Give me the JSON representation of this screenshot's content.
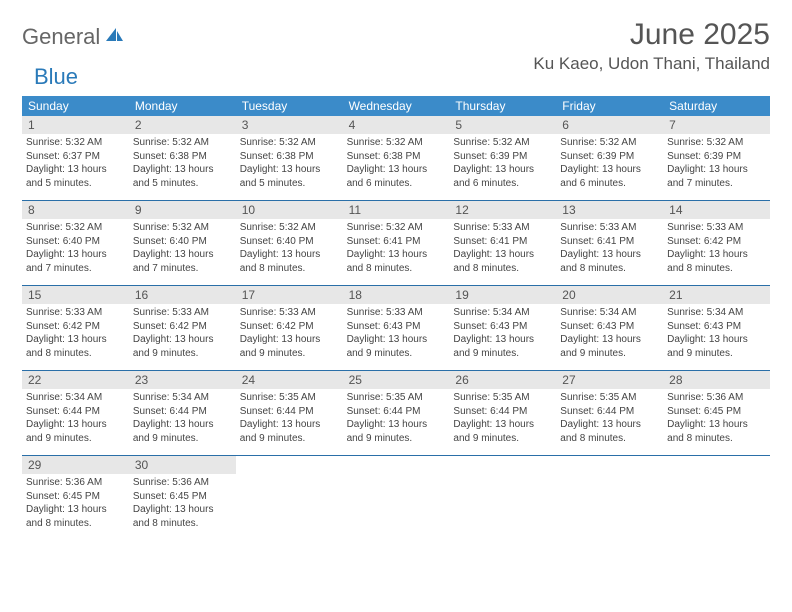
{
  "logo": {
    "text_general": "General",
    "text_blue": "Blue"
  },
  "header": {
    "month_title": "June 2025",
    "location": "Ku Kaeo, Udon Thani, Thailand"
  },
  "colors": {
    "header_bg": "#3b8bc9",
    "header_text": "#ffffff",
    "daynum_bg": "#e7e7e7",
    "daynum_text": "#555555",
    "body_text": "#444444",
    "divider": "#2a6fa8",
    "logo_gray": "#666666",
    "logo_blue": "#2a7ab9",
    "title_text": "#555555",
    "page_bg": "#ffffff"
  },
  "day_names": [
    "Sunday",
    "Monday",
    "Tuesday",
    "Wednesday",
    "Thursday",
    "Friday",
    "Saturday"
  ],
  "weeks": [
    [
      {
        "num": "1",
        "sunrise": "Sunrise: 5:32 AM",
        "sunset": "Sunset: 6:37 PM",
        "daylight1": "Daylight: 13 hours",
        "daylight2": "and 5 minutes."
      },
      {
        "num": "2",
        "sunrise": "Sunrise: 5:32 AM",
        "sunset": "Sunset: 6:38 PM",
        "daylight1": "Daylight: 13 hours",
        "daylight2": "and 5 minutes."
      },
      {
        "num": "3",
        "sunrise": "Sunrise: 5:32 AM",
        "sunset": "Sunset: 6:38 PM",
        "daylight1": "Daylight: 13 hours",
        "daylight2": "and 5 minutes."
      },
      {
        "num": "4",
        "sunrise": "Sunrise: 5:32 AM",
        "sunset": "Sunset: 6:38 PM",
        "daylight1": "Daylight: 13 hours",
        "daylight2": "and 6 minutes."
      },
      {
        "num": "5",
        "sunrise": "Sunrise: 5:32 AM",
        "sunset": "Sunset: 6:39 PM",
        "daylight1": "Daylight: 13 hours",
        "daylight2": "and 6 minutes."
      },
      {
        "num": "6",
        "sunrise": "Sunrise: 5:32 AM",
        "sunset": "Sunset: 6:39 PM",
        "daylight1": "Daylight: 13 hours",
        "daylight2": "and 6 minutes."
      },
      {
        "num": "7",
        "sunrise": "Sunrise: 5:32 AM",
        "sunset": "Sunset: 6:39 PM",
        "daylight1": "Daylight: 13 hours",
        "daylight2": "and 7 minutes."
      }
    ],
    [
      {
        "num": "8",
        "sunrise": "Sunrise: 5:32 AM",
        "sunset": "Sunset: 6:40 PM",
        "daylight1": "Daylight: 13 hours",
        "daylight2": "and 7 minutes."
      },
      {
        "num": "9",
        "sunrise": "Sunrise: 5:32 AM",
        "sunset": "Sunset: 6:40 PM",
        "daylight1": "Daylight: 13 hours",
        "daylight2": "and 7 minutes."
      },
      {
        "num": "10",
        "sunrise": "Sunrise: 5:32 AM",
        "sunset": "Sunset: 6:40 PM",
        "daylight1": "Daylight: 13 hours",
        "daylight2": "and 8 minutes."
      },
      {
        "num": "11",
        "sunrise": "Sunrise: 5:32 AM",
        "sunset": "Sunset: 6:41 PM",
        "daylight1": "Daylight: 13 hours",
        "daylight2": "and 8 minutes."
      },
      {
        "num": "12",
        "sunrise": "Sunrise: 5:33 AM",
        "sunset": "Sunset: 6:41 PM",
        "daylight1": "Daylight: 13 hours",
        "daylight2": "and 8 minutes."
      },
      {
        "num": "13",
        "sunrise": "Sunrise: 5:33 AM",
        "sunset": "Sunset: 6:41 PM",
        "daylight1": "Daylight: 13 hours",
        "daylight2": "and 8 minutes."
      },
      {
        "num": "14",
        "sunrise": "Sunrise: 5:33 AM",
        "sunset": "Sunset: 6:42 PM",
        "daylight1": "Daylight: 13 hours",
        "daylight2": "and 8 minutes."
      }
    ],
    [
      {
        "num": "15",
        "sunrise": "Sunrise: 5:33 AM",
        "sunset": "Sunset: 6:42 PM",
        "daylight1": "Daylight: 13 hours",
        "daylight2": "and 8 minutes."
      },
      {
        "num": "16",
        "sunrise": "Sunrise: 5:33 AM",
        "sunset": "Sunset: 6:42 PM",
        "daylight1": "Daylight: 13 hours",
        "daylight2": "and 9 minutes."
      },
      {
        "num": "17",
        "sunrise": "Sunrise: 5:33 AM",
        "sunset": "Sunset: 6:42 PM",
        "daylight1": "Daylight: 13 hours",
        "daylight2": "and 9 minutes."
      },
      {
        "num": "18",
        "sunrise": "Sunrise: 5:33 AM",
        "sunset": "Sunset: 6:43 PM",
        "daylight1": "Daylight: 13 hours",
        "daylight2": "and 9 minutes."
      },
      {
        "num": "19",
        "sunrise": "Sunrise: 5:34 AM",
        "sunset": "Sunset: 6:43 PM",
        "daylight1": "Daylight: 13 hours",
        "daylight2": "and 9 minutes."
      },
      {
        "num": "20",
        "sunrise": "Sunrise: 5:34 AM",
        "sunset": "Sunset: 6:43 PM",
        "daylight1": "Daylight: 13 hours",
        "daylight2": "and 9 minutes."
      },
      {
        "num": "21",
        "sunrise": "Sunrise: 5:34 AM",
        "sunset": "Sunset: 6:43 PM",
        "daylight1": "Daylight: 13 hours",
        "daylight2": "and 9 minutes."
      }
    ],
    [
      {
        "num": "22",
        "sunrise": "Sunrise: 5:34 AM",
        "sunset": "Sunset: 6:44 PM",
        "daylight1": "Daylight: 13 hours",
        "daylight2": "and 9 minutes."
      },
      {
        "num": "23",
        "sunrise": "Sunrise: 5:34 AM",
        "sunset": "Sunset: 6:44 PM",
        "daylight1": "Daylight: 13 hours",
        "daylight2": "and 9 minutes."
      },
      {
        "num": "24",
        "sunrise": "Sunrise: 5:35 AM",
        "sunset": "Sunset: 6:44 PM",
        "daylight1": "Daylight: 13 hours",
        "daylight2": "and 9 minutes."
      },
      {
        "num": "25",
        "sunrise": "Sunrise: 5:35 AM",
        "sunset": "Sunset: 6:44 PM",
        "daylight1": "Daylight: 13 hours",
        "daylight2": "and 9 minutes."
      },
      {
        "num": "26",
        "sunrise": "Sunrise: 5:35 AM",
        "sunset": "Sunset: 6:44 PM",
        "daylight1": "Daylight: 13 hours",
        "daylight2": "and 9 minutes."
      },
      {
        "num": "27",
        "sunrise": "Sunrise: 5:35 AM",
        "sunset": "Sunset: 6:44 PM",
        "daylight1": "Daylight: 13 hours",
        "daylight2": "and 8 minutes."
      },
      {
        "num": "28",
        "sunrise": "Sunrise: 5:36 AM",
        "sunset": "Sunset: 6:45 PM",
        "daylight1": "Daylight: 13 hours",
        "daylight2": "and 8 minutes."
      }
    ],
    [
      {
        "num": "29",
        "sunrise": "Sunrise: 5:36 AM",
        "sunset": "Sunset: 6:45 PM",
        "daylight1": "Daylight: 13 hours",
        "daylight2": "and 8 minutes."
      },
      {
        "num": "30",
        "sunrise": "Sunrise: 5:36 AM",
        "sunset": "Sunset: 6:45 PM",
        "daylight1": "Daylight: 13 hours",
        "daylight2": "and 8 minutes."
      },
      null,
      null,
      null,
      null,
      null
    ]
  ]
}
